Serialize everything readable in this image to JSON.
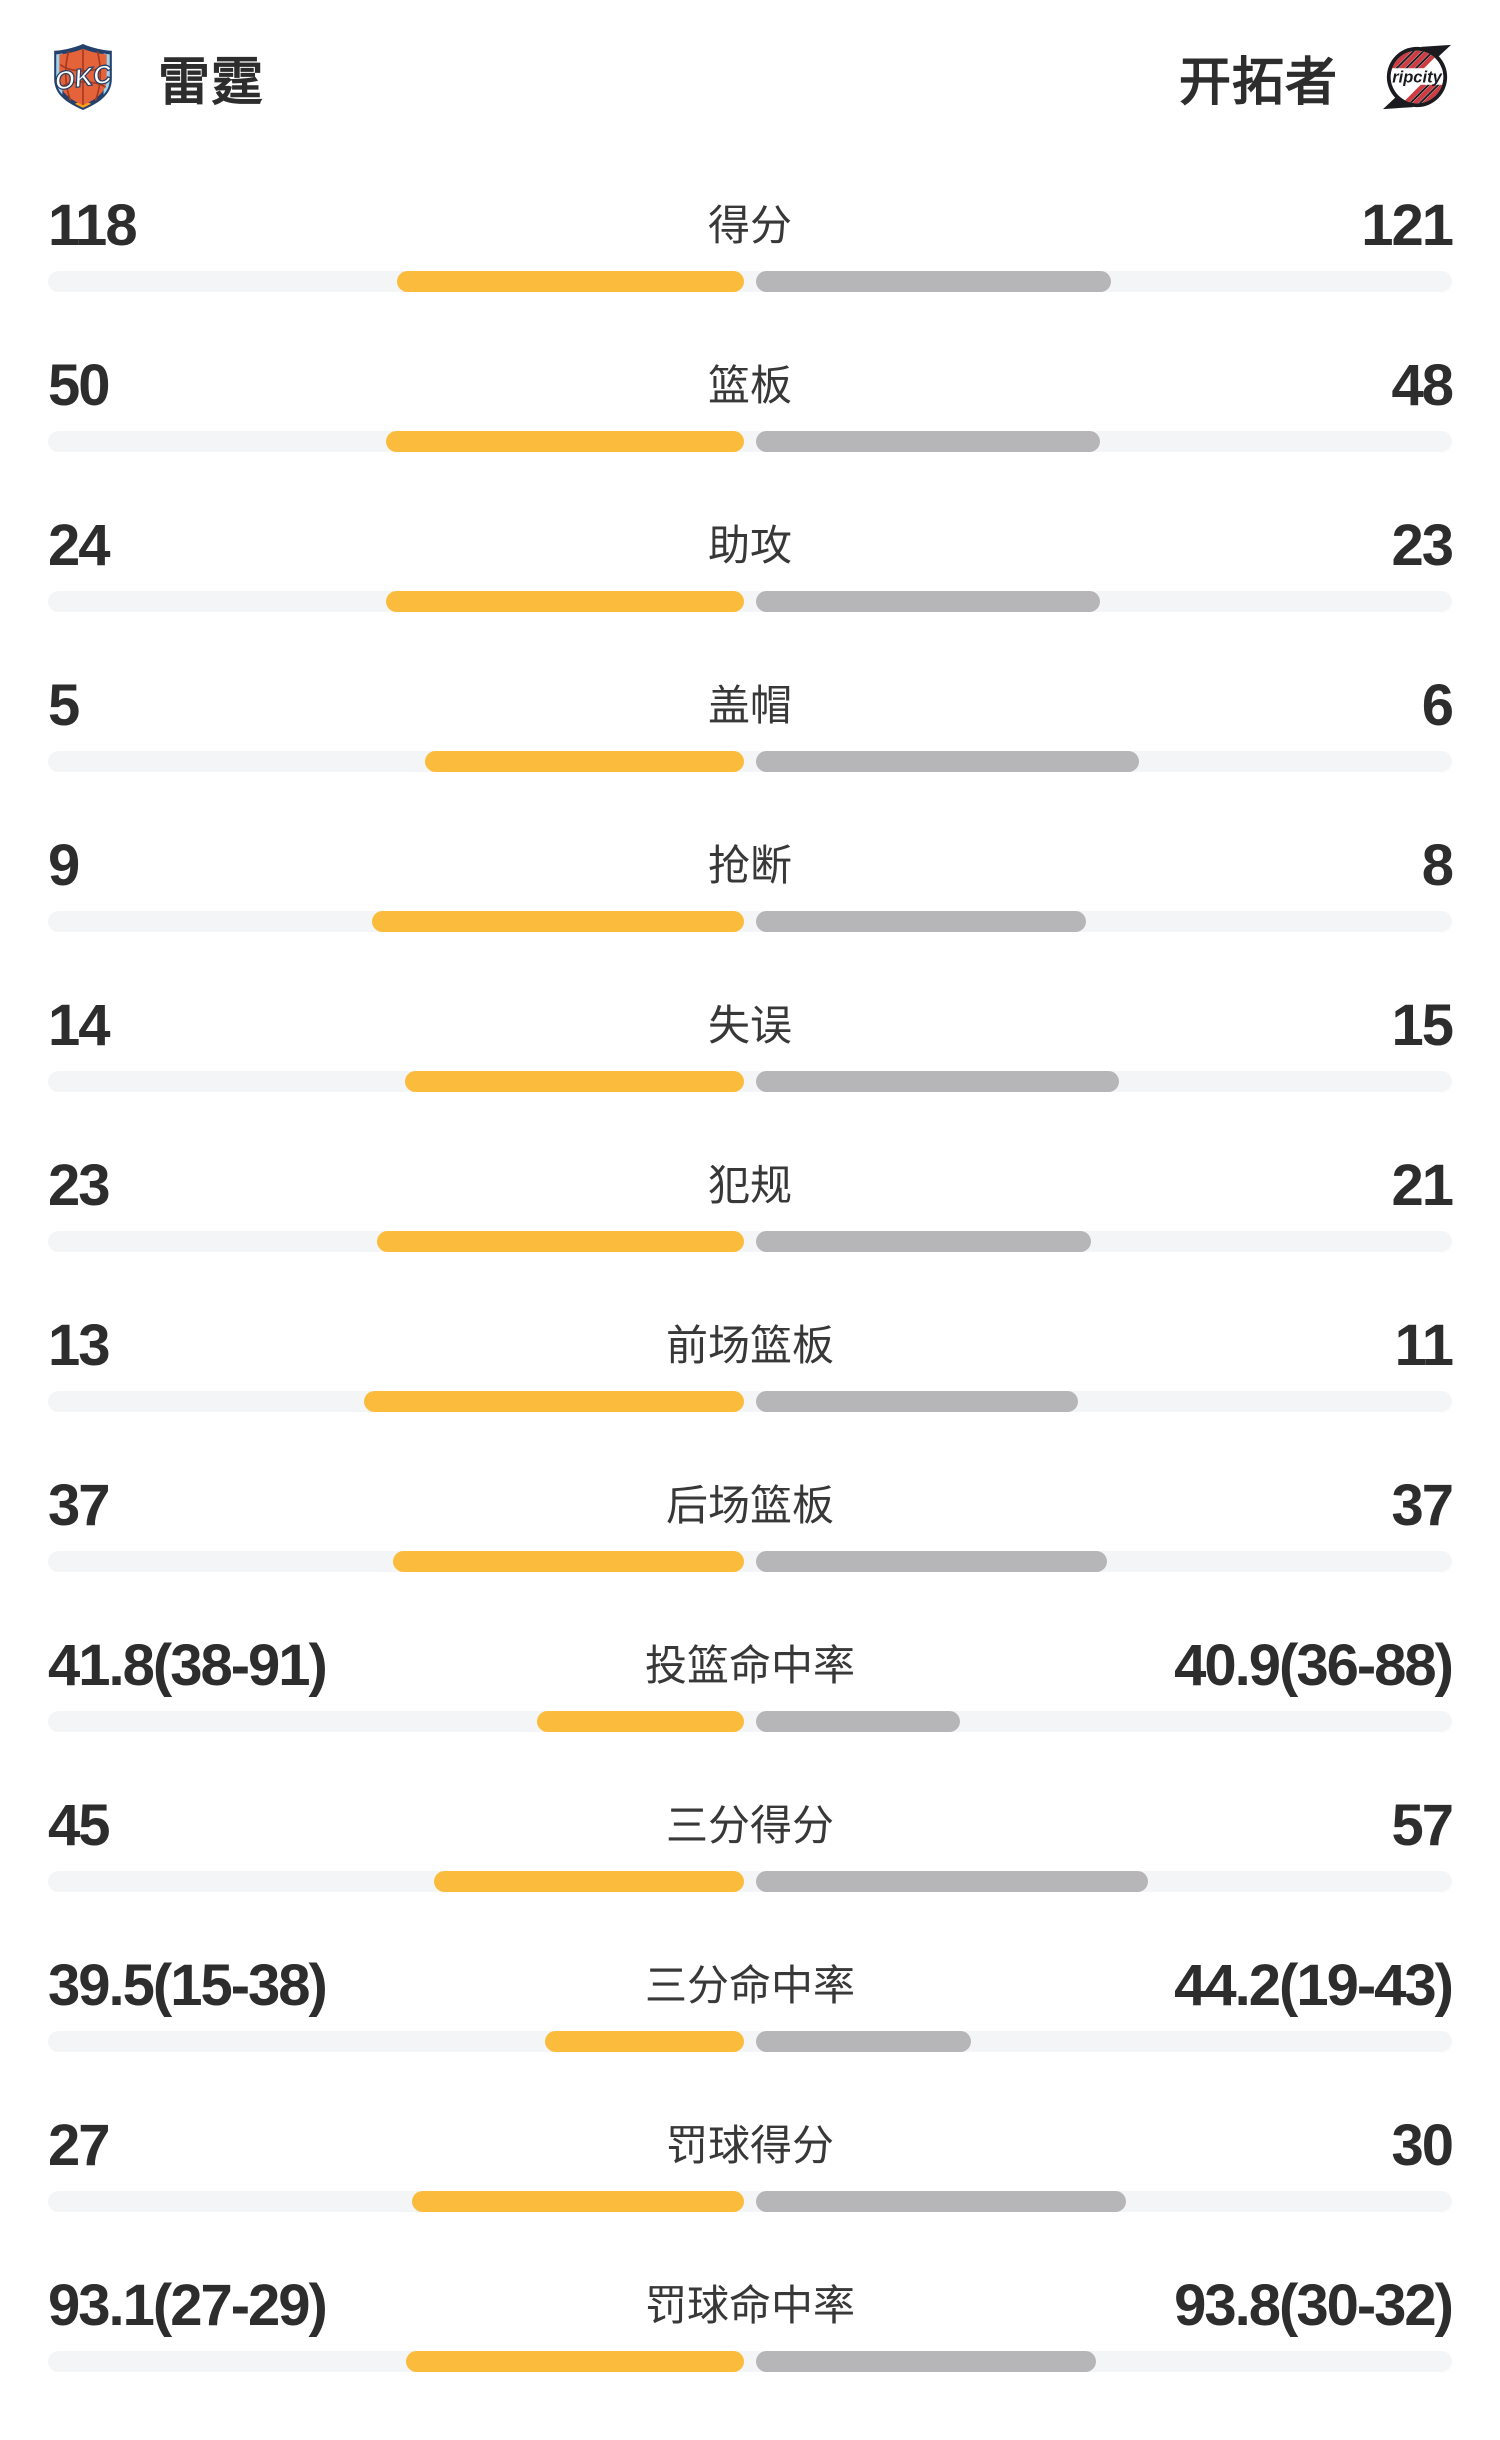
{
  "header": {
    "left_team": {
      "name": "雷霆",
      "logo": "okc-thunder-logo"
    },
    "right_team": {
      "name": "开拓者",
      "logo": "blazers-ripcity-logo"
    }
  },
  "colors": {
    "left_bar": "#FBBC3E",
    "right_bar": "#B6B6B8",
    "track": "#F4F5F7",
    "value_text": "#2D2D2D",
    "label_text": "#383838",
    "okc_navy": "#24416B",
    "okc_orange": "#E4633A",
    "blazers_red": "#CE3B43",
    "blazers_black": "#1B1B1F"
  },
  "chart_data": {
    "type": "bar",
    "subtype": "paired-horizontal-comparison",
    "description": "Team head-to-head game stats; left (雷霆) bars grow leftward from center in yellow, right (开拓者) bars grow rightward in gray, on a light track.",
    "legend_position": "none",
    "grid": false,
    "rows": [
      {
        "label": "得分",
        "left": "118",
        "right": "121",
        "left_num": 118,
        "right_num": 121,
        "type": "count"
      },
      {
        "label": "篮板",
        "left": "50",
        "right": "48",
        "left_num": 50,
        "right_num": 48,
        "type": "count"
      },
      {
        "label": "助攻",
        "left": "24",
        "right": "23",
        "left_num": 24,
        "right_num": 23,
        "type": "count"
      },
      {
        "label": "盖帽",
        "left": "5",
        "right": "6",
        "left_num": 5,
        "right_num": 6,
        "type": "count"
      },
      {
        "label": "抢断",
        "left": "9",
        "right": "8",
        "left_num": 9,
        "right_num": 8,
        "type": "count"
      },
      {
        "label": "失误",
        "left": "14",
        "right": "15",
        "left_num": 14,
        "right_num": 15,
        "type": "count"
      },
      {
        "label": "犯规",
        "left": "23",
        "right": "21",
        "left_num": 23,
        "right_num": 21,
        "type": "count"
      },
      {
        "label": "前场篮板",
        "left": "13",
        "right": "11",
        "left_num": 13,
        "right_num": 11,
        "type": "count"
      },
      {
        "label": "后场篮板",
        "left": "37",
        "right": "37",
        "left_num": 37,
        "right_num": 37,
        "type": "count"
      },
      {
        "label": "投篮命中率",
        "left": "41.8(38-91)",
        "right": "40.9(36-88)",
        "left_num": 41.8,
        "right_num": 40.9,
        "type": "percent"
      },
      {
        "label": "三分得分",
        "left": "45",
        "right": "57",
        "left_num": 45,
        "right_num": 57,
        "type": "count"
      },
      {
        "label": "三分命中率",
        "left": "39.5(15-38)",
        "right": "44.2(19-43)",
        "left_num": 39.5,
        "right_num": 44.2,
        "type": "percent"
      },
      {
        "label": "罚球得分",
        "left": "27",
        "right": "30",
        "left_num": 27,
        "right_num": 30,
        "type": "count"
      },
      {
        "label": "罚球命中率",
        "left": "93.1(27-29)",
        "right": "93.8(30-32)",
        "left_num": 93.1,
        "right_num": 93.8,
        "type": "percent"
      }
    ]
  }
}
